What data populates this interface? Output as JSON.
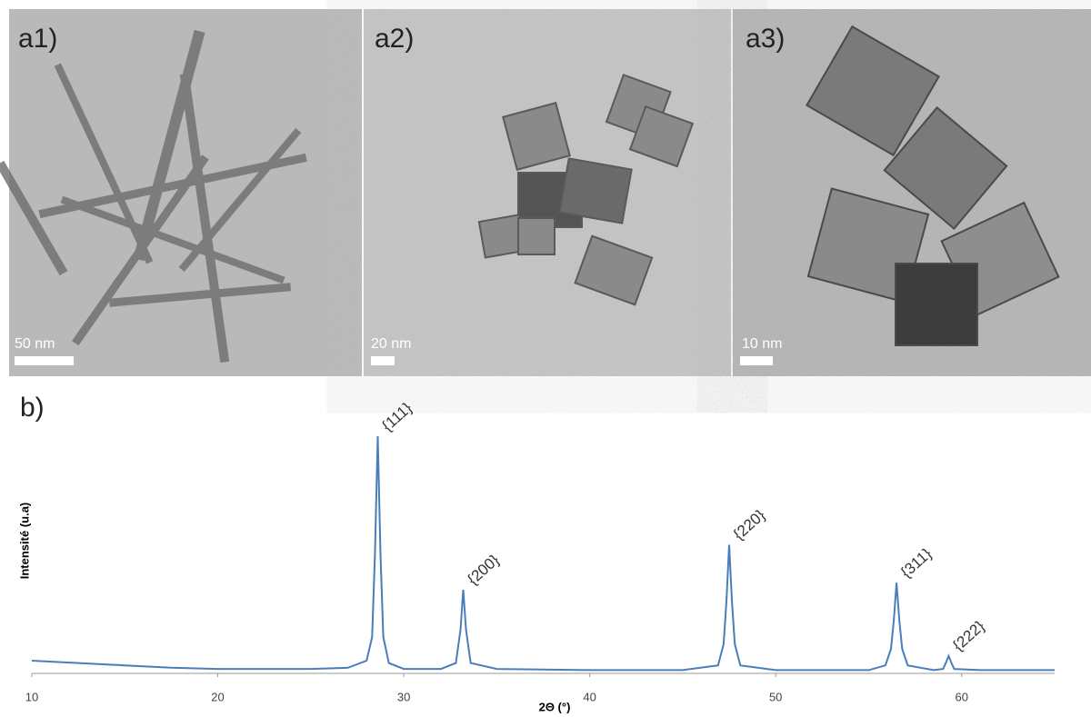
{
  "panels": [
    {
      "label": "a1)",
      "scale": "50 nm"
    },
    {
      "label": "a2)",
      "scale": "20 nm"
    },
    {
      "label": "a3)",
      "scale": "10 nm"
    }
  ],
  "chart_data": {
    "type": "line",
    "label": "b)",
    "xlabel": "2Θ (°)",
    "ylabel": "Intensité (u.a)",
    "xlim": [
      10,
      65
    ],
    "xticks": [
      10,
      20,
      30,
      40,
      50,
      60
    ],
    "ylim": [
      0,
      100
    ],
    "series": [
      {
        "color": "#4a7ebb",
        "x": [
          10,
          12.5,
          15,
          17.5,
          20,
          22.5,
          25,
          27,
          28,
          28.3,
          28.45,
          28.6,
          28.75,
          28.9,
          29.2,
          30,
          32,
          32.8,
          33.05,
          33.2,
          33.35,
          33.6,
          35,
          40,
          45,
          46.9,
          47.2,
          47.35,
          47.5,
          47.65,
          47.8,
          48.1,
          50,
          55,
          55.9,
          56.2,
          56.35,
          56.5,
          56.65,
          56.8,
          57.1,
          58.5,
          59.0,
          59.15,
          59.3,
          59.45,
          59.6,
          61,
          65
        ],
        "values": [
          5,
          4,
          3,
          2,
          1.5,
          1.5,
          1.5,
          2,
          5,
          15,
          50,
          100,
          50,
          15,
          4,
          1.5,
          1.5,
          4,
          18,
          35,
          18,
          4,
          1.5,
          1,
          1,
          3,
          12,
          30,
          54,
          30,
          12,
          3,
          1,
          1,
          3,
          10,
          22,
          38,
          22,
          10,
          3,
          1,
          1.5,
          4,
          7,
          4,
          1.5,
          1,
          1
        ]
      }
    ],
    "annotations": [
      {
        "text": "{111}",
        "x": 28.6,
        "y": 100
      },
      {
        "text": "{200}",
        "x": 33.2,
        "y": 35
      },
      {
        "text": "{220}",
        "x": 47.5,
        "y": 54
      },
      {
        "text": "{311}",
        "x": 56.5,
        "y": 38
      },
      {
        "text": "{222}",
        "x": 59.3,
        "y": 7
      }
    ]
  }
}
